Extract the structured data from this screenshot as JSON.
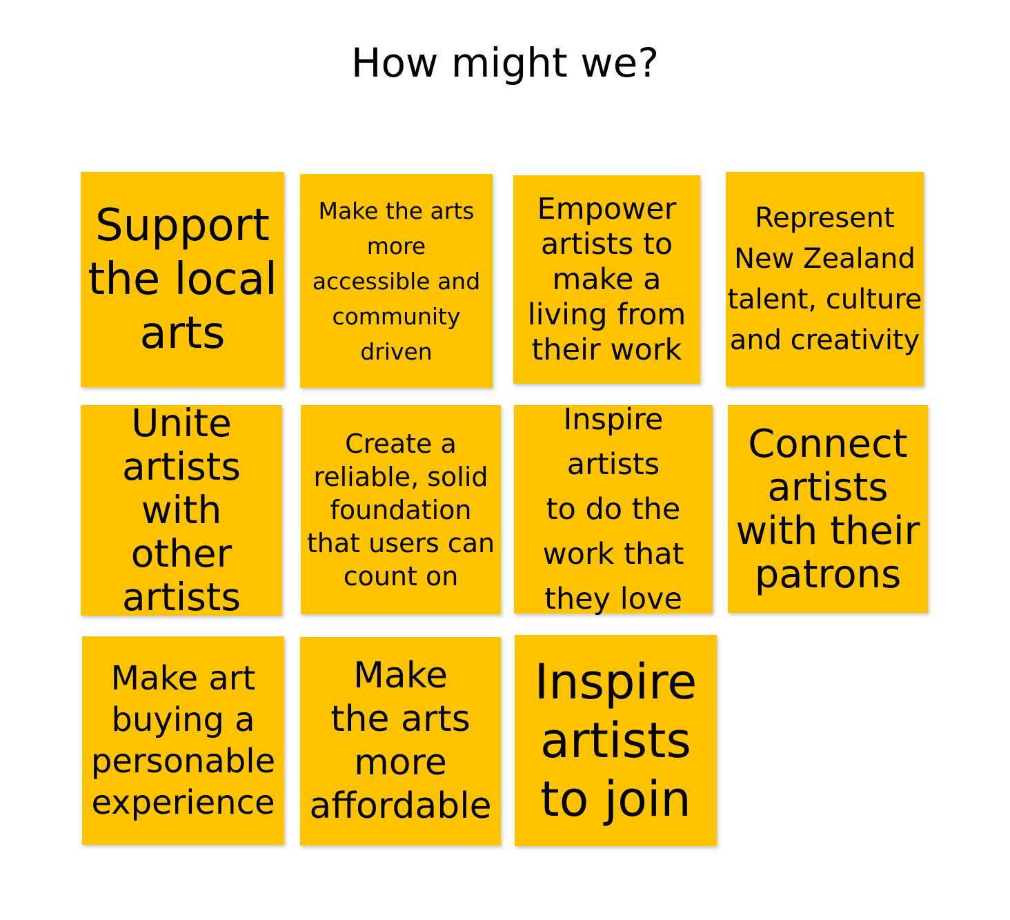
{
  "board": {
    "title": "How might we?",
    "note_color": "#FFC300",
    "notes": [
      {
        "text": "Support\nthe local\narts"
      },
      {
        "text": "Make the arts\nmore\naccessible and\ncommunity\ndriven"
      },
      {
        "text": "Empower\nartists to\nmake a\nliving from\ntheir work"
      },
      {
        "text": "Represent\nNew Zealand\ntalent, culture\nand creativity"
      },
      {
        "text": "Unite\nartists with\nother\nartists"
      },
      {
        "text": "Create a\nreliable, solid\nfoundation\nthat users can\ncount on"
      },
      {
        "text": "Inspire artists\nto do the\nwork that\nthey love"
      },
      {
        "text": "Connect\nartists\nwith their\npatrons"
      },
      {
        "text": "Make art\nbuying a\npersonable\nexperience"
      },
      {
        "text": "Make\nthe arts\nmore\naffordable"
      },
      {
        "text": "Inspire\nartists\nto join"
      }
    ]
  }
}
